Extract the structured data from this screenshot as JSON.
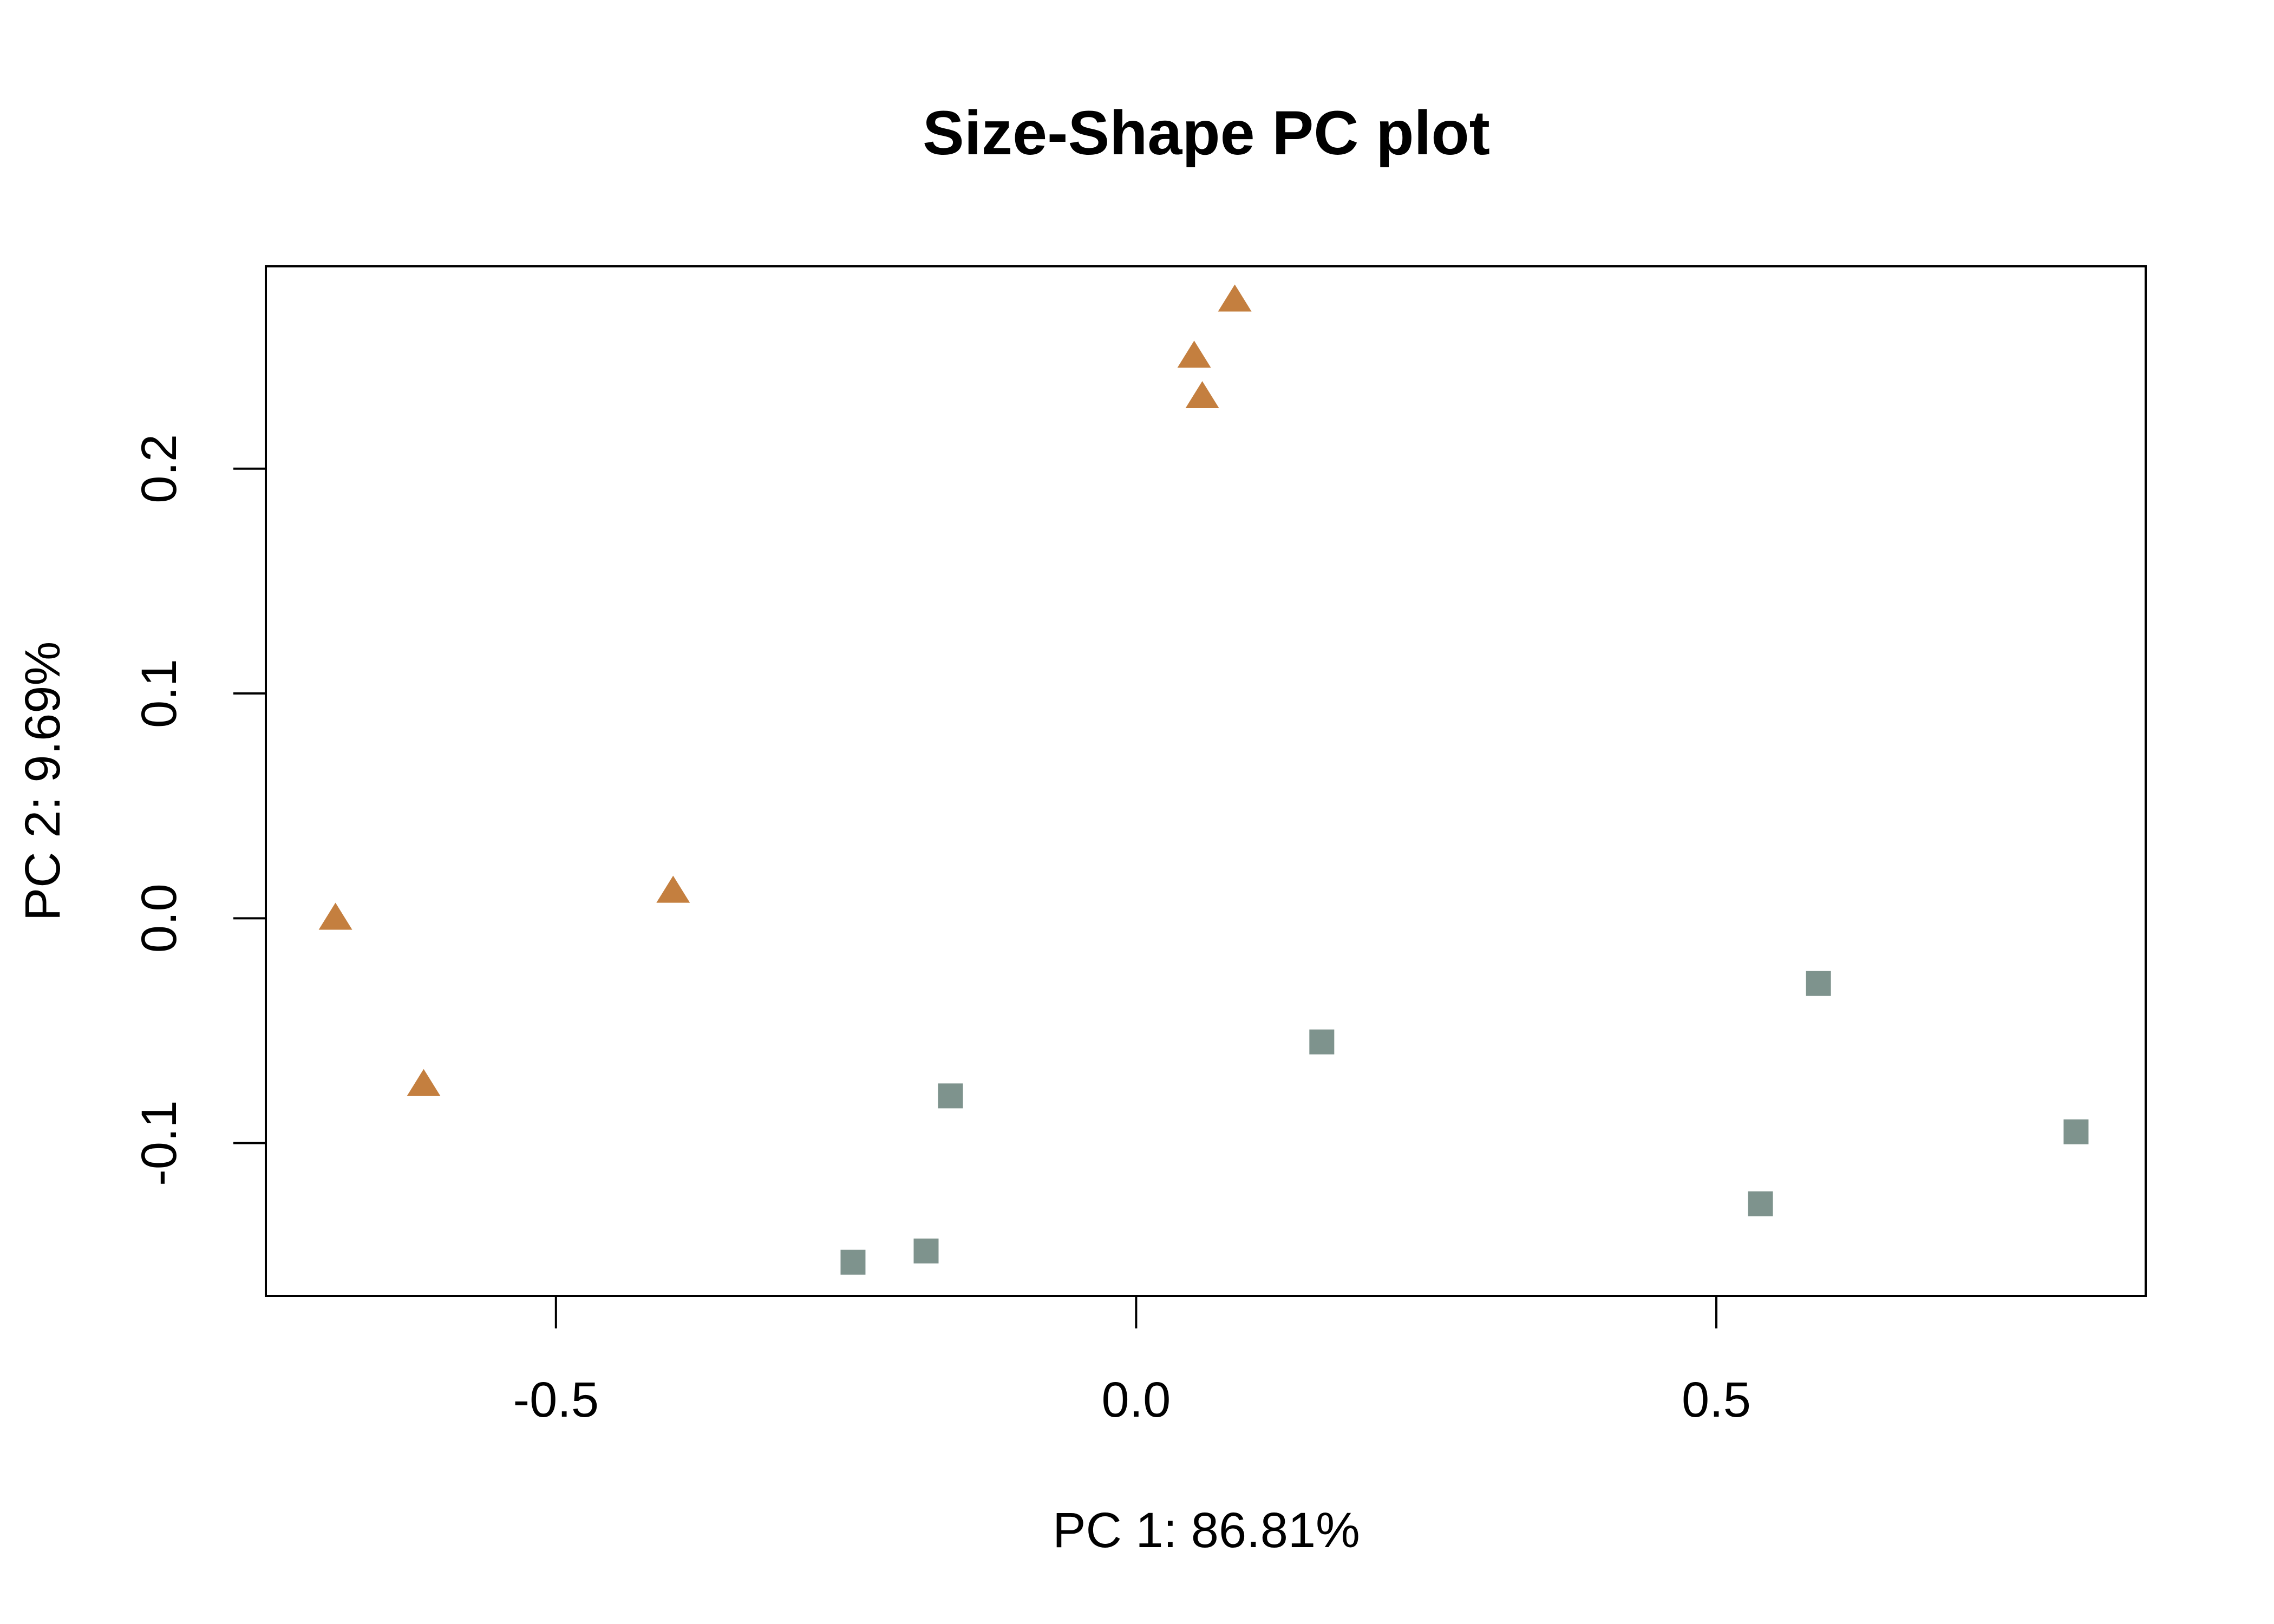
{
  "chart_data": {
    "type": "scatter",
    "title": "Size-Shape PC plot",
    "xlabel": "PC 1: 86.81%",
    "ylabel": "PC 2: 9.69%",
    "xlim": [
      -0.75,
      0.87
    ],
    "ylim": [
      -0.168,
      0.29
    ],
    "grid": false,
    "legend": "none",
    "x_ticks": [
      {
        "value": -0.5,
        "label": "-0.5"
      },
      {
        "value": 0.0,
        "label": "0.0"
      },
      {
        "value": 0.5,
        "label": "0.5"
      }
    ],
    "y_ticks": [
      {
        "value": -0.1,
        "label": "-0.1"
      },
      {
        "value": 0.0,
        "label": "0.0"
      },
      {
        "value": 0.1,
        "label": "0.1"
      },
      {
        "value": 0.2,
        "label": "0.2"
      }
    ],
    "series": [
      {
        "marker": "triangle",
        "color": "#C47F3F",
        "points": [
          {
            "x": -0.69,
            "y": -0.001
          },
          {
            "x": -0.614,
            "y": -0.075
          },
          {
            "x": -0.399,
            "y": 0.011
          },
          {
            "x": 0.05,
            "y": 0.249
          },
          {
            "x": 0.057,
            "y": 0.231
          },
          {
            "x": 0.085,
            "y": 0.274
          }
        ]
      },
      {
        "marker": "square",
        "color": "#7E938D",
        "points": [
          {
            "x": -0.244,
            "y": -0.153
          },
          {
            "x": -0.181,
            "y": -0.148
          },
          {
            "x": -0.16,
            "y": -0.079
          },
          {
            "x": 0.16,
            "y": -0.055
          },
          {
            "x": 0.538,
            "y": -0.127
          },
          {
            "x": 0.588,
            "y": -0.029
          },
          {
            "x": 0.81,
            "y": -0.095
          }
        ]
      }
    ]
  }
}
